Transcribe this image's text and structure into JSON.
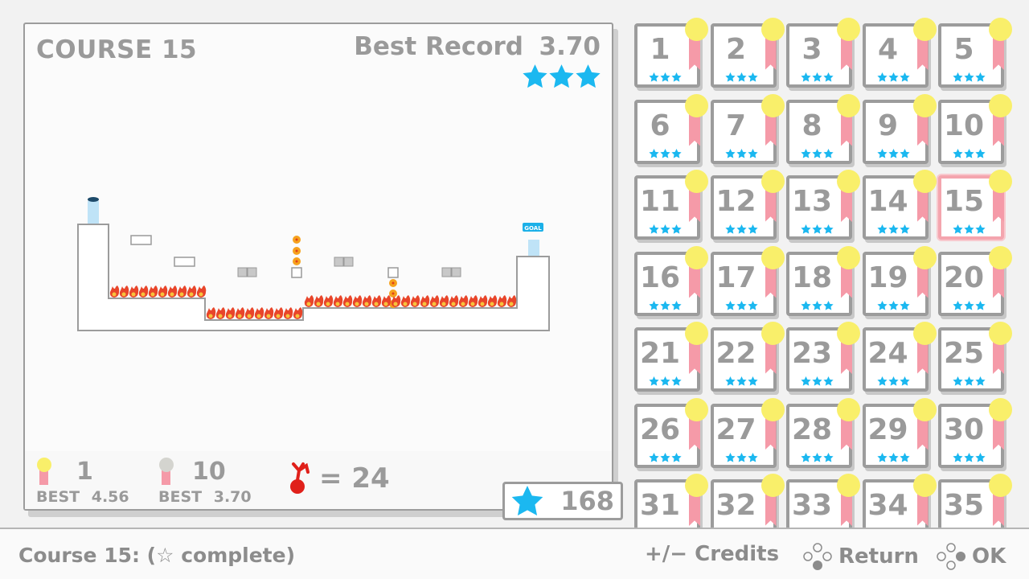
{
  "course": {
    "title": "COURSE 15",
    "best_record_label": "Best Record",
    "best_record_value": "3.70",
    "stars_earned": 3,
    "gold_medal": {
      "count": "1",
      "best_label": "BEST",
      "best_value": "4.56"
    },
    "silver_medal": {
      "count": "10",
      "best_label": "BEST",
      "best_value": "3.70"
    },
    "deaths": "= 24",
    "goal_label": "GOAL"
  },
  "total_stars": "168",
  "colors": {
    "star": "#1bb8f0",
    "gold": "#f9ef6a",
    "silver": "#d4d4cf",
    "ribbon": "#f59aa8",
    "selected": "#f4a5ae",
    "fire": "#e8452a"
  },
  "selected_course": 15,
  "courses": [
    "1",
    "2",
    "3",
    "4",
    "5",
    "6",
    "7",
    "8",
    "9",
    "10",
    "11",
    "12",
    "13",
    "14",
    "15",
    "16",
    "17",
    "18",
    "19",
    "20",
    "21",
    "22",
    "23",
    "24",
    "25",
    "26",
    "27",
    "28",
    "29",
    "30",
    "31",
    "32",
    "33",
    "34",
    "35"
  ],
  "footer": {
    "status": "Course 15: (☆ complete)",
    "credits": "+/− Credits",
    "return": "Return",
    "ok": "OK"
  }
}
